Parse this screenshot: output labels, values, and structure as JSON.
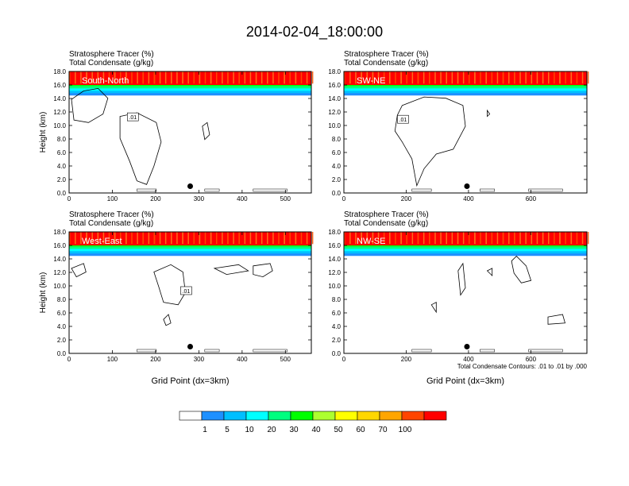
{
  "page_title": "2014-02-04_18:00:00",
  "field_labels": {
    "tracer": "Stratosphere Tracer   (%)",
    "condensate": "Total Condensate   (g/kg)"
  },
  "contour_info": "Total Condensate Contours: .01 to .01 by .000",
  "contour_label": ".01",
  "chart_data": [
    {
      "type": "heatmap",
      "panel": "South-North",
      "ylabel": "Height (km)",
      "xlabel": "",
      "xlim": [
        0,
        560
      ],
      "ylim": [
        0,
        18
      ],
      "x_ticks": [
        0,
        100,
        200,
        300,
        400,
        500
      ],
      "y_ticks": [
        "0.0",
        "2.0",
        "4.0",
        "6.0",
        "8.0",
        "10.0",
        "12.0",
        "14.0",
        "16.0",
        "18.0"
      ],
      "tracer_top_km": 16.0,
      "marker": {
        "x": 280,
        "y": 1.0
      }
    },
    {
      "type": "heatmap",
      "panel": "SW-NE",
      "ylabel": "",
      "xlabel": "",
      "xlim": [
        0,
        780
      ],
      "ylim": [
        0,
        18
      ],
      "x_ticks": [
        0,
        200,
        400,
        600
      ],
      "y_ticks": [
        "0.0",
        "2.0",
        "4.0",
        "6.0",
        "8.0",
        "10.0",
        "12.0",
        "14.0",
        "16.0",
        "18.0"
      ],
      "tracer_top_km": 16.0,
      "marker": {
        "x": 395,
        "y": 1.0
      }
    },
    {
      "type": "heatmap",
      "panel": "West-East",
      "ylabel": "Height (km)",
      "xlabel": "Grid Point (dx=3km)",
      "xlim": [
        0,
        560
      ],
      "ylim": [
        0,
        18
      ],
      "x_ticks": [
        0,
        100,
        200,
        300,
        400,
        500
      ],
      "y_ticks": [
        "0.0",
        "2.0",
        "4.0",
        "6.0",
        "8.0",
        "10.0",
        "12.0",
        "14.0",
        "16.0",
        "18.0"
      ],
      "tracer_top_km": 16.0,
      "marker": {
        "x": 280,
        "y": 1.0
      }
    },
    {
      "type": "heatmap",
      "panel": "NW-SE",
      "ylabel": "",
      "xlabel": "Grid Point (dx=3km)",
      "xlim": [
        0,
        780
      ],
      "ylim": [
        0,
        18
      ],
      "x_ticks": [
        0,
        200,
        400,
        600
      ],
      "y_ticks": [
        "0.0",
        "2.0",
        "4.0",
        "6.0",
        "8.0",
        "10.0",
        "12.0",
        "14.0",
        "16.0",
        "18.0"
      ],
      "tracer_top_km": 16.0,
      "marker": {
        "x": 395,
        "y": 1.0
      }
    }
  ],
  "colorbar": {
    "labels": [
      "1",
      "5",
      "10",
      "20",
      "30",
      "40",
      "50",
      "60",
      "70",
      "100"
    ],
    "colors": [
      "#ffffff",
      "#1e90ff",
      "#00bfff",
      "#00ffff",
      "#00ff7f",
      "#00ff00",
      "#adff2f",
      "#ffff00",
      "#ffd700",
      "#ffa500",
      "#ff4500",
      "#ff0000"
    ]
  }
}
